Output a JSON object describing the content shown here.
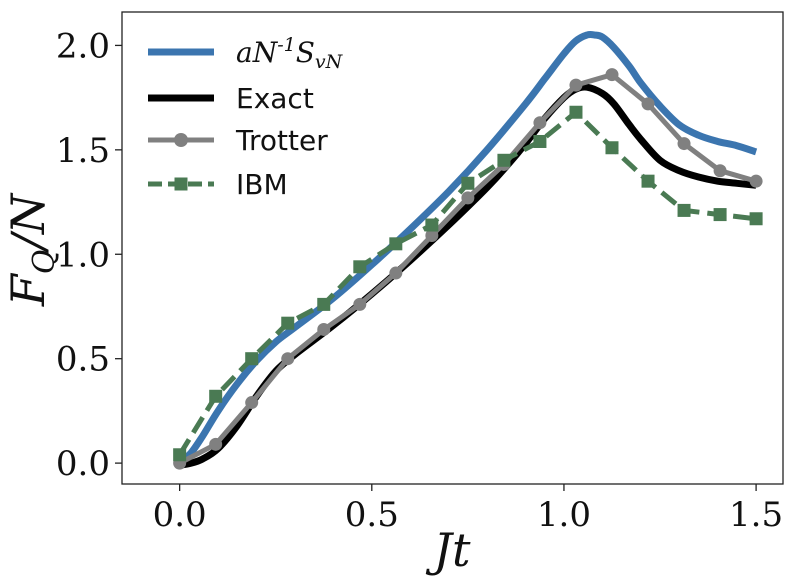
{
  "chart_data": {
    "type": "line",
    "title": "",
    "xlabel": "Jt",
    "ylabel": "F_Q/N",
    "xlim": [
      -0.15,
      1.57
    ],
    "ylim": [
      -0.1,
      2.16
    ],
    "x_ticks": [
      0.0,
      0.5,
      1.0,
      1.5
    ],
    "x_tick_labels": [
      "0.0",
      "0.5",
      "1.0",
      "1.5"
    ],
    "y_ticks": [
      0.0,
      0.5,
      1.0,
      1.5,
      2.0
    ],
    "y_tick_labels": [
      "0.0",
      "0.5",
      "1.0",
      "1.5",
      "2.0"
    ],
    "grid": false,
    "legend_position": "top-left",
    "series": [
      {
        "name": "aN^{-1}S_{vN}",
        "color": "#3b75af",
        "style": "solid-thick",
        "x": [
          0.0,
          0.03,
          0.06,
          0.1,
          0.15,
          0.2,
          0.25,
          0.3,
          0.4,
          0.5,
          0.6,
          0.7,
          0.8,
          0.9,
          0.95,
          1.0,
          1.03,
          1.06,
          1.08,
          1.1,
          1.13,
          1.17,
          1.2,
          1.25,
          1.3,
          1.35,
          1.4,
          1.45,
          1.5
        ],
        "y": [
          0.0,
          0.05,
          0.13,
          0.25,
          0.38,
          0.49,
          0.58,
          0.65,
          0.79,
          0.95,
          1.12,
          1.3,
          1.5,
          1.72,
          1.84,
          1.96,
          2.02,
          2.05,
          2.05,
          2.04,
          1.99,
          1.9,
          1.82,
          1.71,
          1.62,
          1.57,
          1.54,
          1.52,
          1.49
        ]
      },
      {
        "name": "Exact",
        "color": "#000000",
        "style": "solid-thick",
        "x": [
          0.0,
          0.03,
          0.06,
          0.1,
          0.15,
          0.2,
          0.25,
          0.3,
          0.4,
          0.5,
          0.6,
          0.7,
          0.8,
          0.85,
          0.9,
          0.95,
          1.0,
          1.03,
          1.06,
          1.1,
          1.13,
          1.17,
          1.2,
          1.25,
          1.3,
          1.35,
          1.4,
          1.45,
          1.5
        ],
        "y": [
          -0.01,
          0.0,
          0.02,
          0.07,
          0.18,
          0.32,
          0.44,
          0.52,
          0.66,
          0.81,
          0.97,
          1.14,
          1.32,
          1.42,
          1.53,
          1.65,
          1.75,
          1.79,
          1.8,
          1.77,
          1.72,
          1.62,
          1.55,
          1.45,
          1.4,
          1.37,
          1.35,
          1.34,
          1.33
        ]
      },
      {
        "name": "Trotter",
        "color": "#808080",
        "style": "solid-markers-circle",
        "x": [
          0.0,
          0.0938,
          0.1875,
          0.2813,
          0.375,
          0.4688,
          0.5625,
          0.6563,
          0.75,
          0.8438,
          0.9375,
          1.0313,
          1.125,
          1.2188,
          1.3125,
          1.4063,
          1.5
        ],
        "y": [
          0.0,
          0.09,
          0.29,
          0.5,
          0.64,
          0.76,
          0.91,
          1.09,
          1.27,
          1.43,
          1.63,
          1.81,
          1.86,
          1.72,
          1.53,
          1.4,
          1.35
        ]
      },
      {
        "name": "IBM",
        "color": "#4a7a53",
        "style": "dashed-markers-square",
        "x": [
          0.0,
          0.0938,
          0.1875,
          0.2813,
          0.375,
          0.4688,
          0.5625,
          0.6563,
          0.75,
          0.8438,
          0.9375,
          1.0313,
          1.125,
          1.2188,
          1.3125,
          1.4063,
          1.5
        ],
        "y": [
          0.04,
          0.32,
          0.5,
          0.67,
          0.76,
          0.94,
          1.05,
          1.14,
          1.34,
          1.45,
          1.54,
          1.68,
          1.51,
          1.35,
          1.21,
          1.19,
          1.17
        ]
      }
    ]
  }
}
